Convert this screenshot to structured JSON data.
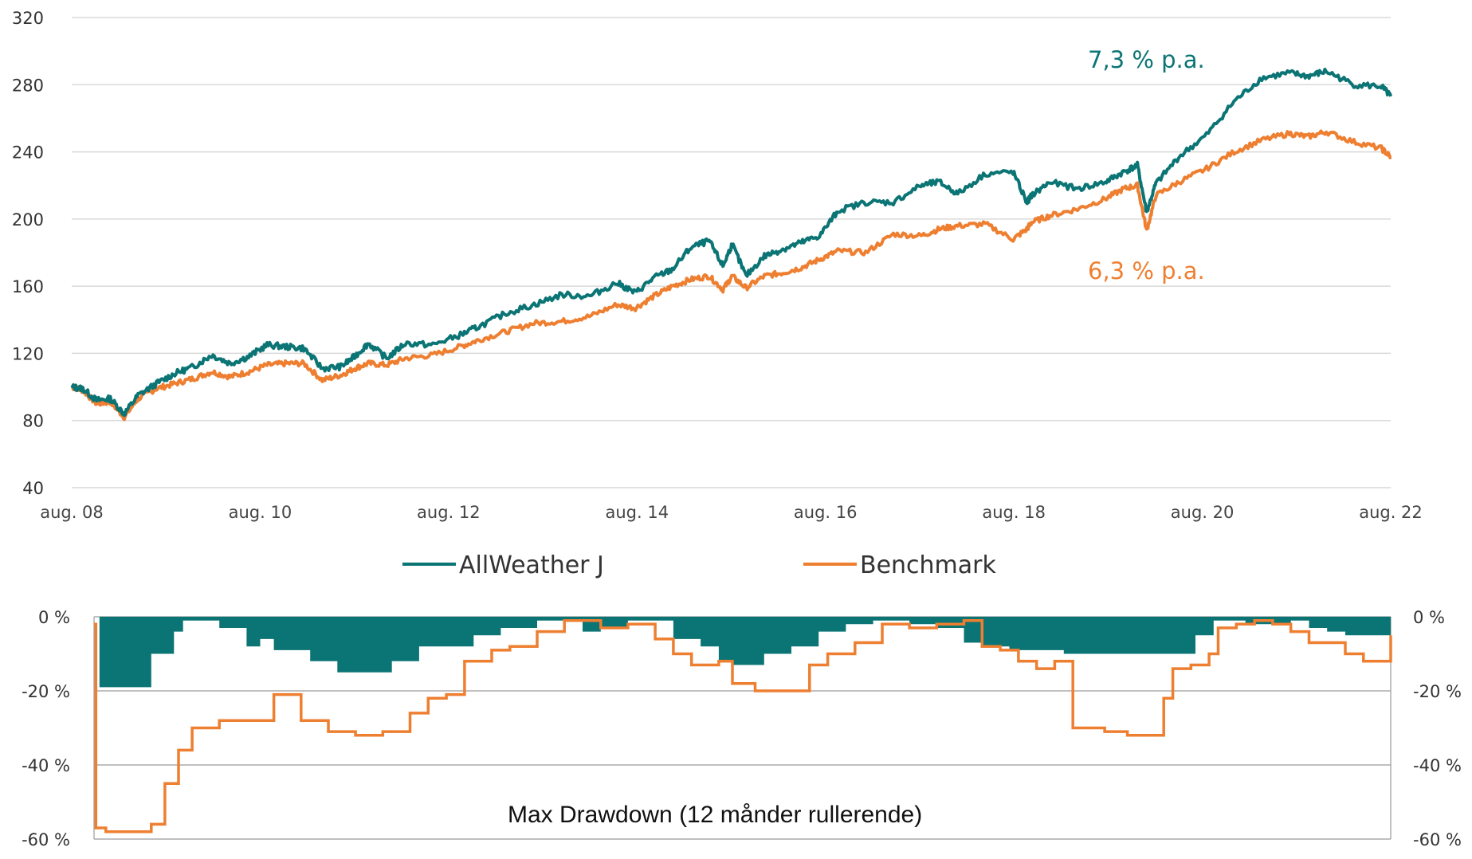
{
  "colors": {
    "allweather": "#0b7474",
    "benchmark": "#ee7f31",
    "grid": "#d9d9d9"
  },
  "chart_data": [
    {
      "type": "line",
      "ylim": [
        40,
        320
      ],
      "yticks": [
        "40",
        "80",
        "120",
        "160",
        "200",
        "240",
        "280",
        "320"
      ],
      "xticks": [
        "aug. 08",
        "aug. 10",
        "aug. 12",
        "aug. 14",
        "aug. 16",
        "aug. 18",
        "aug. 20",
        "aug. 22"
      ],
      "legend": [
        "AllWeather J",
        "Benchmark"
      ],
      "annotations": [
        {
          "text": "7,3 % p.a.",
          "series": "AllWeather J"
        },
        {
          "text": "6,3 % p.a.",
          "series": "Benchmark"
        }
      ],
      "series": [
        {
          "name": "AllWeather J",
          "x": [
            2008.58,
            2008.7,
            2008.85,
            2009.0,
            2009.15,
            2009.3,
            2009.5,
            2009.7,
            2009.9,
            2010.1,
            2010.3,
            2010.5,
            2010.7,
            2010.9,
            2011.1,
            2011.3,
            2011.5,
            2011.65,
            2011.8,
            2012.0,
            2012.2,
            2012.5,
            2012.8,
            2013.0,
            2013.3,
            2013.6,
            2013.9,
            2014.2,
            2014.5,
            2014.7,
            2014.9,
            2015.1,
            2015.3,
            2015.5,
            2015.65,
            2015.75,
            2015.9,
            2016.1,
            2016.3,
            2016.5,
            2016.7,
            2016.9,
            2017.2,
            2017.5,
            2017.8,
            2018.0,
            2018.2,
            2018.5,
            2018.8,
            2018.95,
            2019.0,
            2019.2,
            2019.5,
            2019.8,
            2020.0,
            2020.15,
            2020.25,
            2020.35,
            2020.6,
            2020.9,
            2021.2,
            2021.5,
            2021.8,
            2022.0,
            2022.2,
            2022.5,
            2022.8,
            2022.9
          ],
          "y": [
            100,
            99,
            92,
            93,
            84,
            95,
            102,
            108,
            112,
            119,
            114,
            118,
            125,
            124,
            123,
            111,
            112,
            118,
            126,
            117,
            126,
            125,
            131,
            136,
            144,
            149,
            155,
            154,
            162,
            156,
            165,
            170,
            183,
            187,
            172,
            185,
            166,
            178,
            182,
            186,
            190,
            205,
            210,
            210,
            220,
            222,
            215,
            227,
            228,
            210,
            214,
            222,
            218,
            222,
            228,
            232,
            204,
            221,
            237,
            250,
            270,
            284,
            287,
            285,
            288,
            280,
            279,
            273
          ]
        },
        {
          "name": "Benchmark",
          "x": [
            2008.58,
            2008.7,
            2008.85,
            2009.0,
            2009.15,
            2009.3,
            2009.5,
            2009.7,
            2009.9,
            2010.1,
            2010.3,
            2010.5,
            2010.7,
            2010.9,
            2011.1,
            2011.3,
            2011.5,
            2011.65,
            2011.8,
            2012.0,
            2012.2,
            2012.5,
            2012.8,
            2013.0,
            2013.3,
            2013.6,
            2013.9,
            2014.2,
            2014.5,
            2014.7,
            2014.9,
            2015.1,
            2015.3,
            2015.5,
            2015.65,
            2015.75,
            2015.9,
            2016.1,
            2016.3,
            2016.5,
            2016.7,
            2016.9,
            2017.2,
            2017.5,
            2017.8,
            2018.0,
            2018.2,
            2018.5,
            2018.8,
            2018.95,
            2019.0,
            2019.2,
            2019.5,
            2019.8,
            2020.0,
            2020.15,
            2020.25,
            2020.35,
            2020.6,
            2020.9,
            2021.2,
            2021.5,
            2021.8,
            2022.0,
            2022.2,
            2022.5,
            2022.8,
            2022.9
          ],
          "y": [
            100,
            98,
            90,
            91,
            82,
            93,
            99,
            102,
            105,
            109,
            106,
            109,
            113,
            114,
            114,
            104,
            107,
            111,
            114,
            113,
            117,
            119,
            124,
            128,
            133,
            138,
            139,
            142,
            149,
            147,
            154,
            160,
            164,
            166,
            158,
            166,
            159,
            166,
            168,
            171,
            176,
            181,
            180,
            191,
            190,
            194,
            196,
            197,
            188,
            194,
            198,
            202,
            206,
            212,
            218,
            220,
            193,
            214,
            222,
            230,
            240,
            247,
            251,
            249,
            252,
            246,
            242,
            237
          ]
        }
      ]
    },
    {
      "type": "area",
      "title": "Max Drawdown (12 månder rullerende)",
      "ylim": [
        -60,
        0
      ],
      "yticks": [
        "-60 %",
        "-40 %",
        "-20 %",
        "0 %"
      ],
      "series": [
        {
          "name": "AllWeather J",
          "x": [
            2008.62,
            2008.68,
            2009.15,
            2009.25,
            2009.5,
            2009.6,
            2010.0,
            2010.3,
            2010.45,
            2010.6,
            2011.0,
            2011.3,
            2011.7,
            2011.9,
            2012.2,
            2012.5,
            2012.8,
            2013.1,
            2013.5,
            2013.8,
            2014.0,
            2014.2,
            2014.5,
            2014.8,
            2015.0,
            2015.3,
            2015.5,
            2015.65,
            2015.9,
            2016.0,
            2016.3,
            2016.6,
            2016.9,
            2017.2,
            2017.6,
            2017.9,
            2018.2,
            2018.4,
            2018.7,
            2019.0,
            2019.3,
            2019.5,
            2019.8,
            2020.0,
            2020.3,
            2020.5,
            2020.75,
            2020.95,
            2021.1,
            2021.3,
            2021.6,
            2021.8,
            2022.0,
            2022.2,
            2022.4,
            2022.6,
            2022.9
          ],
          "y": [
            0,
            -19,
            -19,
            -10,
            -4,
            -1,
            -3,
            -8,
            -6,
            -9,
            -12,
            -15,
            -15,
            -12,
            -8,
            -8,
            -5,
            -3,
            -1,
            -1,
            -4,
            -3,
            -1,
            -1,
            -6,
            -8,
            -12,
            -13,
            -13,
            -10,
            -8,
            -4,
            -2,
            -1,
            -2,
            -3,
            -7,
            -8,
            -9,
            -9,
            -10,
            -10,
            -10,
            -10,
            -10,
            -10,
            -5,
            -1,
            -1,
            -2,
            -2,
            -1,
            -3,
            -4,
            -5,
            -5,
            -4
          ]
        },
        {
          "name": "Benchmark",
          "x": [
            2008.62,
            2008.64,
            2008.75,
            2009.0,
            2009.25,
            2009.4,
            2009.55,
            2009.7,
            2010.0,
            2010.4,
            2010.6,
            2010.75,
            2010.9,
            2011.2,
            2011.5,
            2011.6,
            2011.8,
            2012.1,
            2012.3,
            2012.5,
            2012.7,
            2013.0,
            2013.2,
            2013.5,
            2013.8,
            2014.0,
            2014.2,
            2014.5,
            2014.8,
            2015.0,
            2015.2,
            2015.3,
            2015.5,
            2015.65,
            2015.9,
            2016.2,
            2016.5,
            2016.7,
            2017.0,
            2017.3,
            2017.6,
            2017.9,
            2018.2,
            2018.4,
            2018.6,
            2018.8,
            2019.0,
            2019.2,
            2019.4,
            2019.6,
            2019.75,
            2020.0,
            2020.3,
            2020.4,
            2020.5,
            2020.7,
            2020.9,
            2021.0,
            2021.2,
            2021.4,
            2021.6,
            2021.8,
            2022.0,
            2022.4,
            2022.6,
            2022.8,
            2022.9
          ],
          "y": [
            -2,
            -57,
            -58,
            -58,
            -56,
            -45,
            -36,
            -30,
            -28,
            -28,
            -21,
            -21,
            -28,
            -31,
            -32,
            -32,
            -31,
            -26,
            -22,
            -21,
            -12,
            -9,
            -8,
            -4,
            -1,
            -1,
            -3,
            -2,
            -6,
            -10,
            -13,
            -13,
            -12,
            -18,
            -20,
            -20,
            -13,
            -10,
            -7,
            -2,
            -3,
            -2,
            -1,
            -8,
            -9,
            -12,
            -14,
            -12,
            -30,
            -30,
            -31,
            -32,
            -32,
            -22,
            -14,
            -13,
            -10,
            -3,
            -2,
            -1,
            -2,
            -4,
            -7,
            -10,
            -12,
            -12,
            -5
          ]
        }
      ]
    }
  ]
}
